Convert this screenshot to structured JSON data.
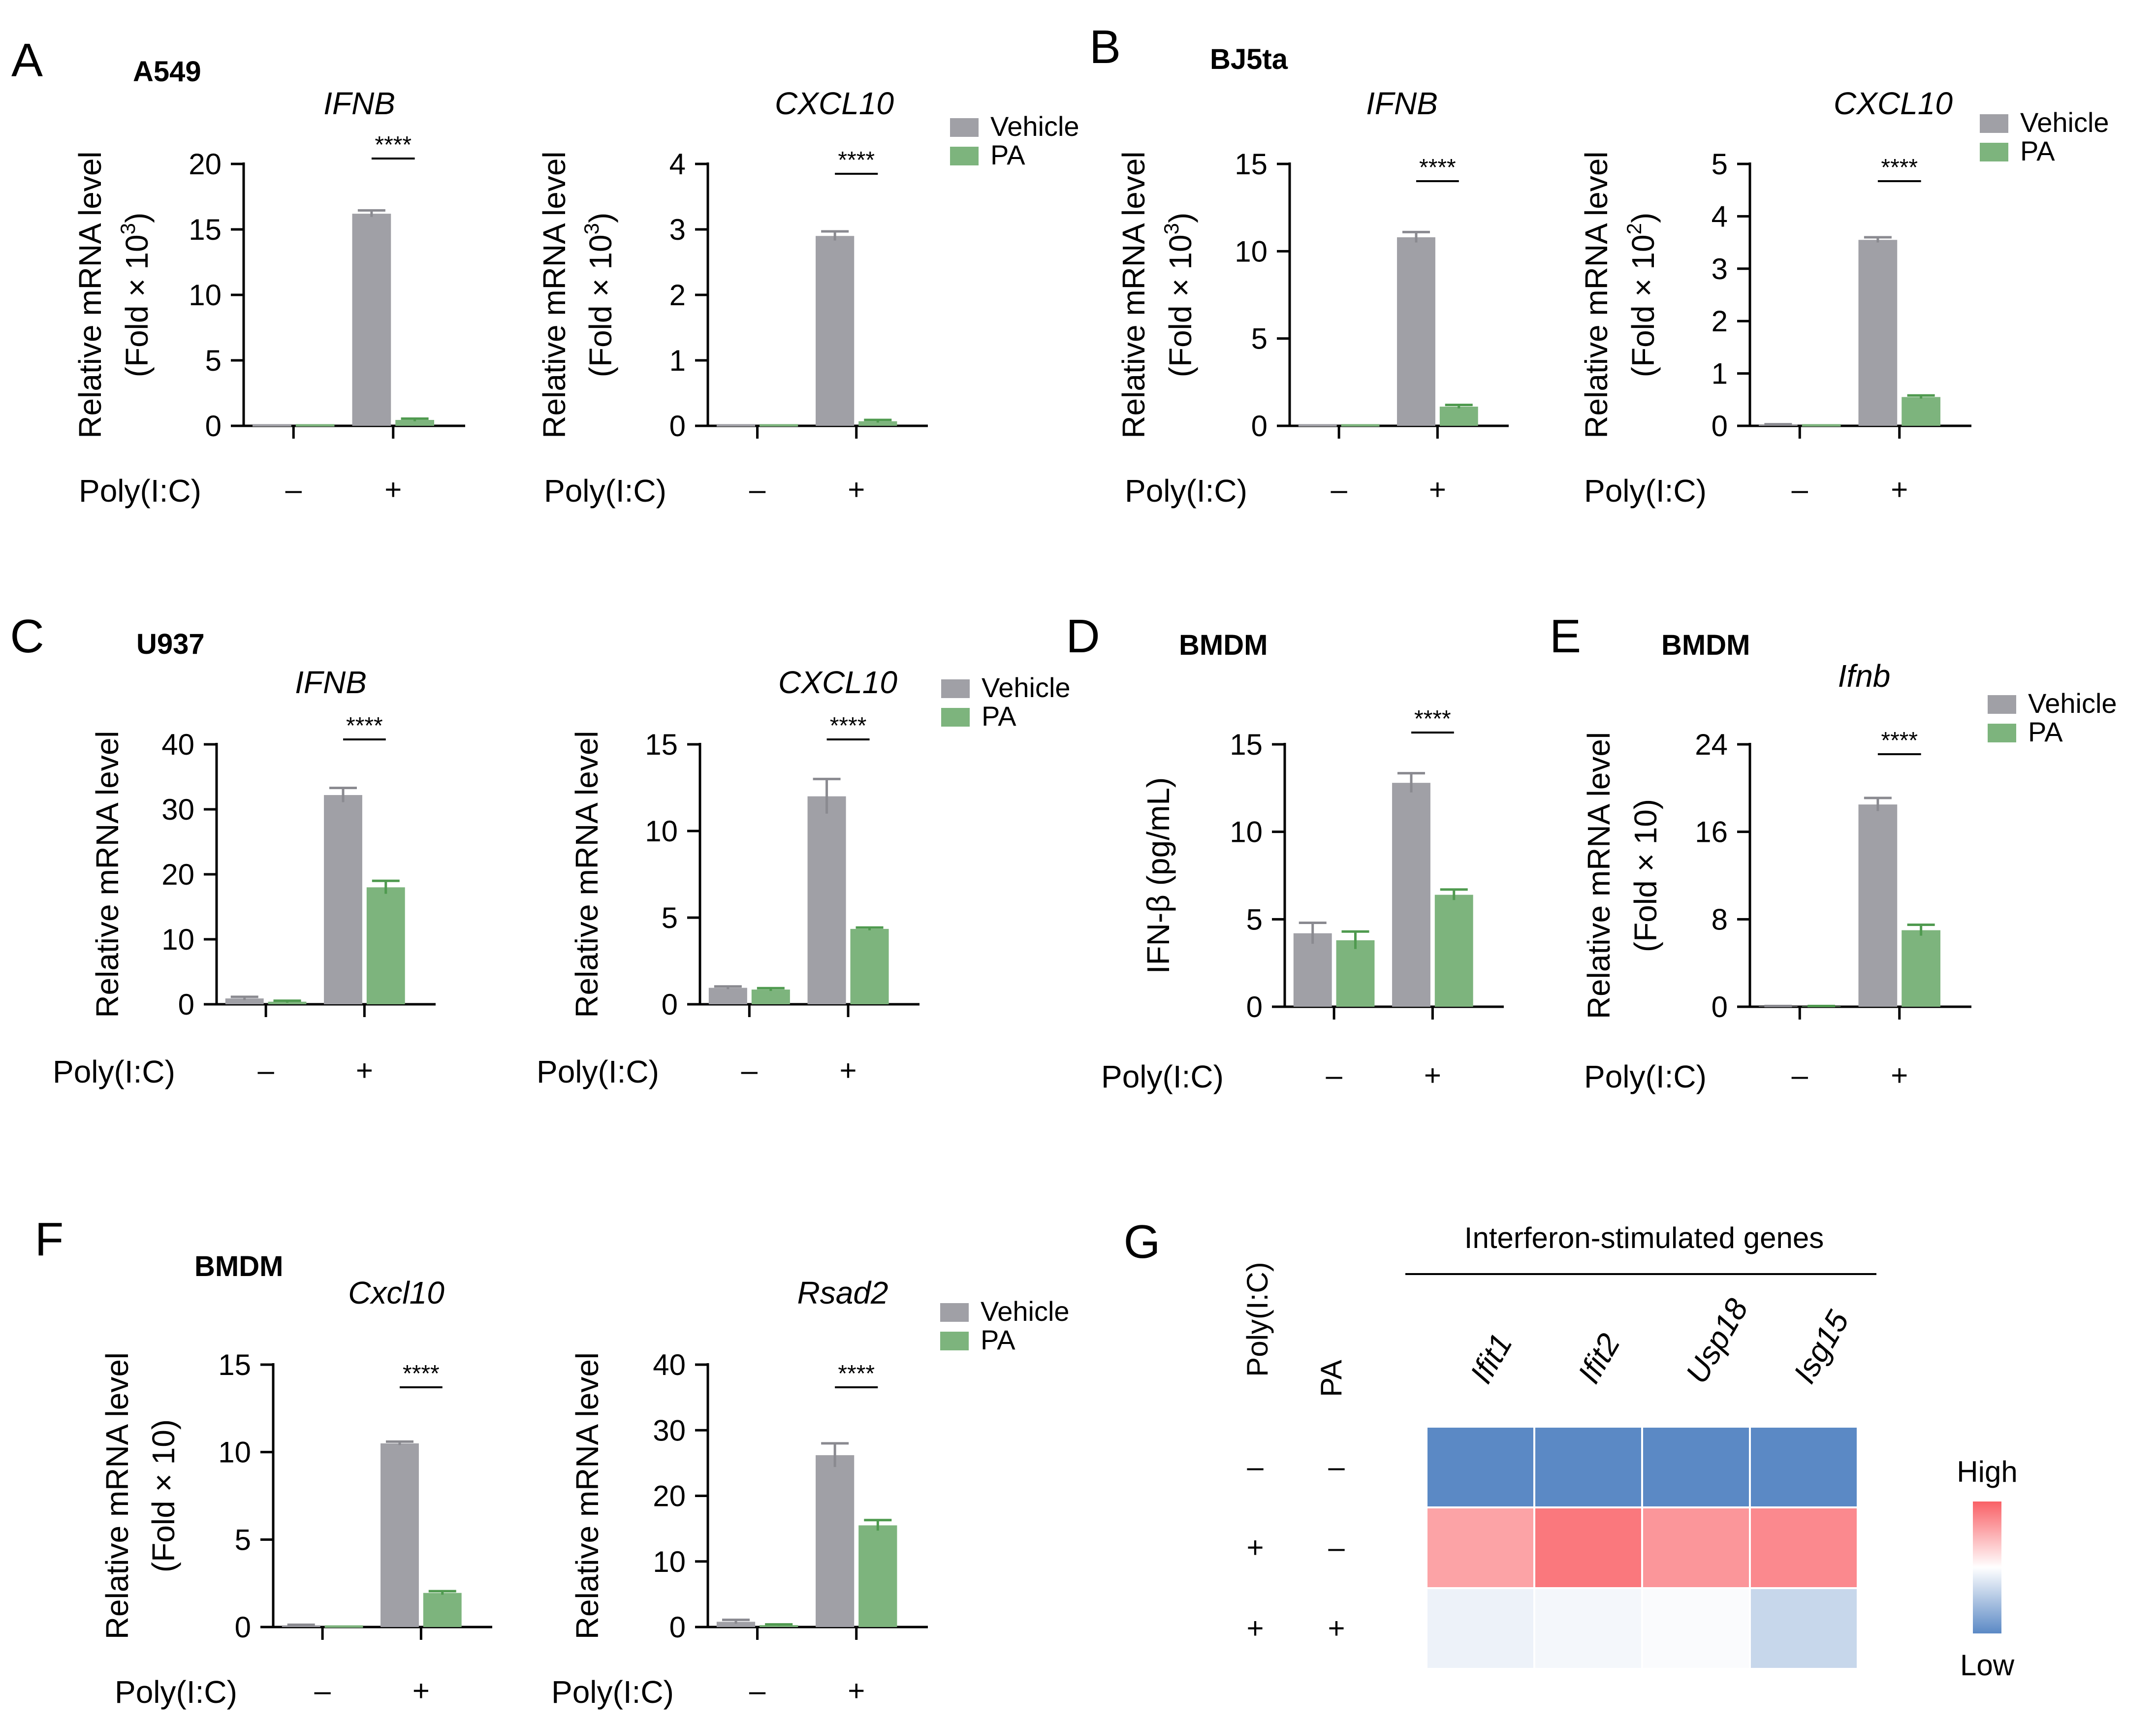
{
  "colors": {
    "vehicle": "#a0a0a6",
    "pa": "#7db47d",
    "pa_err": "#4f9a4f",
    "heat_low": "#5b89c5",
    "heat_mid": "#ffffff",
    "heat_high": "#f96066"
  },
  "legend": {
    "vehicle": "Vehicle",
    "pa": "PA"
  },
  "chart_data": [
    {
      "id": "A1",
      "panel_letter": "A",
      "cell_line": "A549",
      "type": "bar",
      "title": "IFNB",
      "ylabel": [
        "Relative mRNA level",
        "(Fold × 10",
        "3",
        ")"
      ],
      "ylim": [
        0,
        20
      ],
      "yticks": [
        "0",
        "5",
        "10",
        "15",
        "20"
      ],
      "xlabel": "Poly(I:C)",
      "categories": [
        "–",
        "+"
      ],
      "series": [
        {
          "name": "Vehicle",
          "values": [
            0,
            16.2
          ],
          "errors": [
            0,
            0.25
          ]
        },
        {
          "name": "PA",
          "values": [
            0,
            0.45
          ],
          "errors": [
            0,
            0.1
          ]
        }
      ],
      "significance": "****"
    },
    {
      "id": "A2",
      "type": "bar",
      "title": "CXCL10",
      "ylabel": [
        "Relative mRNA level",
        "(Fold × 10",
        "3",
        ")"
      ],
      "ylim": [
        0,
        4
      ],
      "yticks": [
        "0",
        "1",
        "2",
        "3",
        "4"
      ],
      "xlabel": "Poly(I:C)",
      "categories": [
        "–",
        "+"
      ],
      "series": [
        {
          "name": "Vehicle",
          "values": [
            0,
            2.9
          ],
          "errors": [
            0,
            0.07
          ]
        },
        {
          "name": "PA",
          "values": [
            0,
            0.07
          ],
          "errors": [
            0,
            0.02
          ]
        }
      ],
      "significance": "****",
      "legend": true
    },
    {
      "id": "B1",
      "panel_letter": "B",
      "cell_line": "BJ5ta",
      "type": "bar",
      "title": "IFNB",
      "ylabel": [
        "Relative mRNA level",
        "(Fold × 10",
        "3",
        ")"
      ],
      "ylim": [
        0,
        15
      ],
      "yticks": [
        "0",
        "5",
        "10",
        "15"
      ],
      "xlabel": "Poly(I:C)",
      "categories": [
        "–",
        "+"
      ],
      "series": [
        {
          "name": "Vehicle",
          "values": [
            0,
            10.8
          ],
          "errors": [
            0,
            0.3
          ]
        },
        {
          "name": "PA",
          "values": [
            0,
            1.1
          ],
          "errors": [
            0,
            0.1
          ]
        }
      ],
      "significance": "****"
    },
    {
      "id": "B2",
      "type": "bar",
      "title": "CXCL10",
      "ylabel": [
        "Relative mRNA level",
        "(Fold × 10",
        "2",
        ")"
      ],
      "ylim": [
        0,
        5
      ],
      "yticks": [
        "0",
        "1",
        "2",
        "3",
        "4",
        "5"
      ],
      "xlabel": "Poly(I:C)",
      "categories": [
        "–",
        "+"
      ],
      "series": [
        {
          "name": "Vehicle",
          "values": [
            0.02,
            3.55
          ],
          "errors": [
            0.01,
            0.05
          ]
        },
        {
          "name": "PA",
          "values": [
            0,
            0.55
          ],
          "errors": [
            0,
            0.03
          ]
        }
      ],
      "significance": "****",
      "legend": true
    },
    {
      "id": "C1",
      "panel_letter": "C",
      "cell_line": "U937",
      "type": "bar",
      "title": "IFNB",
      "ylabel": [
        "Relative mRNA level"
      ],
      "ylim": [
        0,
        40
      ],
      "yticks": [
        "0",
        "10",
        "20",
        "30",
        "40"
      ],
      "xlabel": "Poly(I:C)",
      "categories": [
        "–",
        "+"
      ],
      "series": [
        {
          "name": "Vehicle",
          "values": [
            0.9,
            32.2
          ],
          "errors": [
            0.25,
            1.1
          ]
        },
        {
          "name": "PA",
          "values": [
            0.4,
            18.0
          ],
          "errors": [
            0.15,
            1.0
          ]
        }
      ],
      "significance": "****"
    },
    {
      "id": "C2",
      "type": "bar",
      "title": "CXCL10",
      "ylabel": [
        "Relative mRNA level"
      ],
      "ylim": [
        0,
        15
      ],
      "yticks": [
        "0",
        "5",
        "10",
        "15"
      ],
      "xlabel": "Poly(I:C)",
      "categories": [
        "–",
        "+"
      ],
      "series": [
        {
          "name": "Vehicle",
          "values": [
            0.95,
            12.0
          ],
          "errors": [
            0.08,
            1.0
          ]
        },
        {
          "name": "PA",
          "values": [
            0.85,
            4.35
          ],
          "errors": [
            0.08,
            0.08
          ]
        }
      ],
      "significance": "****",
      "legend": true
    },
    {
      "id": "D",
      "panel_letter": "D",
      "cell_line": "BMDM",
      "type": "bar",
      "title": "",
      "ylabel": [
        "IFN-β (pg/mL)"
      ],
      "ylim": [
        0,
        15
      ],
      "yticks": [
        "0",
        "5",
        "10",
        "15"
      ],
      "xlabel": "Poly(I:C)",
      "categories": [
        "–",
        "+"
      ],
      "series": [
        {
          "name": "Vehicle",
          "values": [
            4.2,
            12.8
          ],
          "errors": [
            0.6,
            0.55
          ]
        },
        {
          "name": "PA",
          "values": [
            3.8,
            6.4
          ],
          "errors": [
            0.5,
            0.3
          ]
        }
      ],
      "significance": "****"
    },
    {
      "id": "E",
      "panel_letter": "E",
      "cell_line": "BMDM",
      "type": "bar",
      "title": "Ifnb",
      "ylabel": [
        "Relative mRNA level",
        "(Fold × 10)"
      ],
      "ylim": [
        0,
        24
      ],
      "yticks": [
        "0",
        "8",
        "16",
        "24"
      ],
      "xlabel": "Poly(I:C)",
      "categories": [
        "–",
        "+"
      ],
      "series": [
        {
          "name": "Vehicle",
          "values": [
            0.05,
            18.5
          ],
          "errors": [
            0.02,
            0.6
          ]
        },
        {
          "name": "PA",
          "values": [
            0.05,
            7.0
          ],
          "errors": [
            0.02,
            0.5
          ]
        }
      ],
      "significance": "****",
      "legend": true
    },
    {
      "id": "F1",
      "panel_letter": "F",
      "cell_line": "BMDM",
      "type": "bar",
      "title": "Cxcl10",
      "ylabel": [
        "Relative mRNA level",
        "(Fold × 10)"
      ],
      "ylim": [
        0,
        15
      ],
      "yticks": [
        "0",
        "5",
        "10",
        "15"
      ],
      "xlabel": "Poly(I:C)",
      "categories": [
        "–",
        "+"
      ],
      "series": [
        {
          "name": "Vehicle",
          "values": [
            0.1,
            10.5
          ],
          "errors": [
            0.03,
            0.1
          ]
        },
        {
          "name": "PA",
          "values": [
            0,
            1.95
          ],
          "errors": [
            0,
            0.1
          ]
        }
      ],
      "significance": "****"
    },
    {
      "id": "F2",
      "type": "bar",
      "title": "Rsad2",
      "ylabel": [
        "Relative mRNA level"
      ],
      "ylim": [
        0,
        40
      ],
      "yticks": [
        "0",
        "10",
        "20",
        "30",
        "40"
      ],
      "xlabel": "Poly(I:C)",
      "categories": [
        "–",
        "+"
      ],
      "series": [
        {
          "name": "Vehicle",
          "values": [
            0.8,
            26.2
          ],
          "errors": [
            0.3,
            1.8
          ]
        },
        {
          "name": "PA",
          "values": [
            0.3,
            15.5
          ],
          "errors": [
            0.1,
            0.8
          ]
        }
      ],
      "significance": "****",
      "legend": true
    }
  ],
  "heatmap": {
    "panel_letter": "G",
    "type": "heatmap",
    "title": "Interferon-stimulated genes",
    "columns": [
      "Ifit1",
      "Ifit2",
      "Usp18",
      "Isg15"
    ],
    "row_factor_labels": [
      "Poly(I:C)",
      "PA"
    ],
    "rows": [
      {
        "polyic": "–",
        "pa": "–"
      },
      {
        "polyic": "+",
        "pa": "–"
      },
      {
        "polyic": "+",
        "pa": "+"
      }
    ],
    "values": [
      [
        -1.0,
        -1.0,
        -1.0,
        -1.0
      ],
      [
        0.58,
        0.85,
        0.66,
        0.74
      ],
      [
        -0.11,
        -0.07,
        -0.03,
        -0.34
      ]
    ],
    "scale_high": "High",
    "scale_low": "Low"
  }
}
